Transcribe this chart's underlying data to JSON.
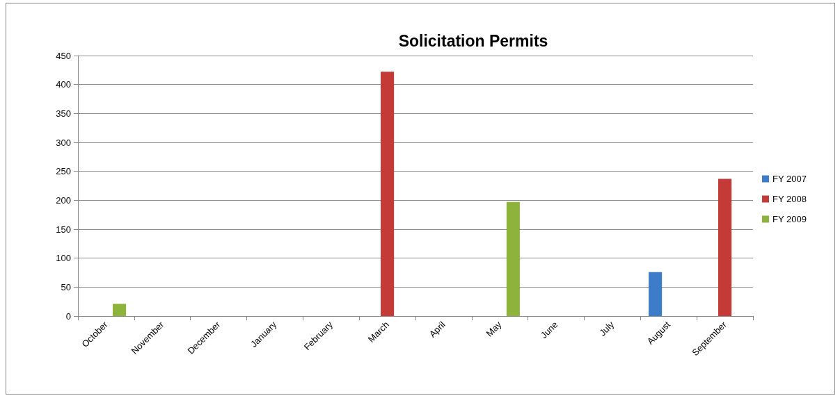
{
  "chart_data": {
    "type": "bar",
    "title": "Solicitation Permits",
    "categories": [
      "October",
      "November",
      "December",
      "January",
      "February",
      "March",
      "April",
      "May",
      "June",
      "July",
      "August",
      "September"
    ],
    "series": [
      {
        "name": "FY 2007",
        "color": "#3d7cc9",
        "values": [
          null,
          null,
          null,
          null,
          null,
          null,
          null,
          null,
          null,
          null,
          76,
          null
        ]
      },
      {
        "name": "FY 2008",
        "color": "#c43a36",
        "values": [
          null,
          null,
          null,
          null,
          null,
          422,
          null,
          null,
          null,
          null,
          null,
          237
        ]
      },
      {
        "name": "FY 2009",
        "color": "#8db33a",
        "values": [
          21,
          null,
          null,
          null,
          null,
          null,
          null,
          197,
          null,
          null,
          null,
          null
        ]
      }
    ],
    "ylim": [
      0,
      450
    ],
    "yticks": [
      0,
      50,
      100,
      150,
      200,
      250,
      300,
      350,
      400,
      450
    ],
    "grid": "y",
    "legend": "right"
  }
}
